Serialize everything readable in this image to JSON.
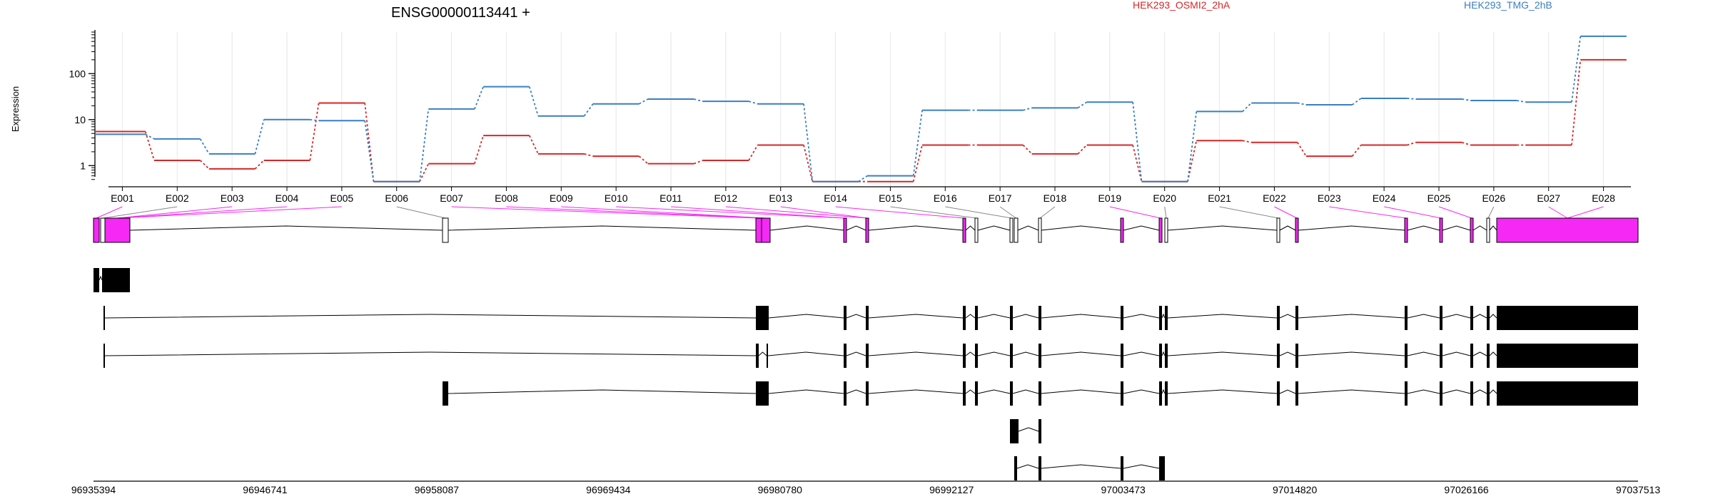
{
  "chart_data": {
    "type": "line",
    "title": "ENSG00000113441 +",
    "ylabel": "Expression",
    "yscale": "log",
    "ylim": [
      0.4,
      800
    ],
    "yticks": [
      "1",
      "10",
      "100"
    ],
    "grid": "vertical",
    "legend_placement": "top",
    "categories": [
      "E001",
      "E002",
      "E003",
      "E004",
      "E005",
      "E006",
      "E007",
      "E008",
      "E009",
      "E010",
      "E011",
      "E012",
      "E013",
      "E014",
      "E015",
      "E016",
      "E017",
      "E018",
      "E019",
      "E020",
      "E021",
      "E022",
      "E023",
      "E024",
      "E025",
      "E026",
      "E027",
      "E028"
    ],
    "series": [
      {
        "name": "HEK293_OSMI2_2hA",
        "color": "#d62728",
        "values": [
          5.5,
          1.3,
          0.85,
          1.3,
          23,
          0.45,
          1.1,
          4.5,
          1.8,
          1.6,
          1.1,
          1.3,
          2.8,
          0.45,
          0.45,
          2.8,
          2.8,
          1.8,
          2.8,
          0.45,
          3.5,
          3.2,
          1.6,
          2.8,
          3.2,
          2.8,
          2.8,
          200
        ]
      },
      {
        "name": "HEK293_TMG_2hB",
        "color": "#3a7fc1",
        "values": [
          4.8,
          3.8,
          1.8,
          10,
          9.5,
          0.45,
          17,
          52,
          12,
          22,
          28,
          25,
          22,
          0.45,
          0.6,
          16,
          16,
          18,
          24,
          0.45,
          15,
          23,
          21,
          29,
          28,
          26,
          24,
          650
        ]
      }
    ],
    "genomic_ticks": [
      "96935394",
      "96946741",
      "96958087",
      "96969434",
      "96980780",
      "96992127",
      "97003473",
      "97014820",
      "97026166",
      "97037513"
    ],
    "highlight_color": "#f528f5"
  }
}
